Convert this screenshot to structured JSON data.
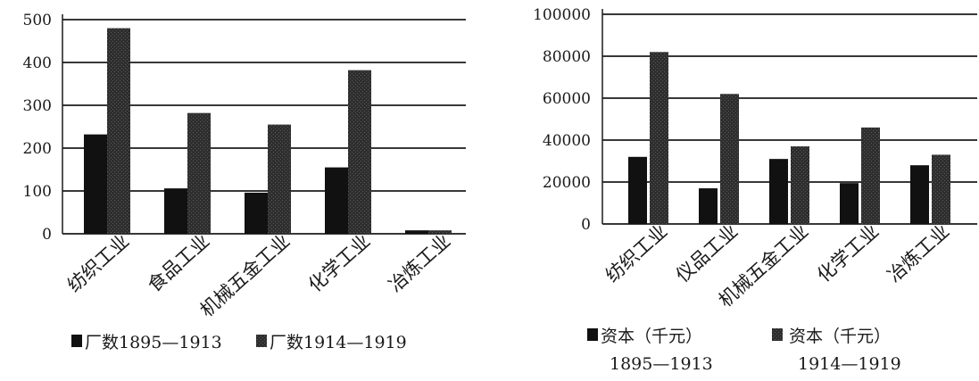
{
  "chart_data": [
    {
      "type": "bar",
      "categories": [
        "纺织工业",
        "食品工业",
        "机械五金工业",
        "化学工业",
        "冶炼工业"
      ],
      "series": [
        {
          "name": "厂数1895—1913",
          "values": [
            232,
            106,
            96,
            155,
            8
          ]
        },
        {
          "name": "厂数1914—1919",
          "values": [
            480,
            282,
            255,
            382,
            8
          ]
        }
      ],
      "yticks": [
        "0",
        "100",
        "200",
        "300",
        "400",
        "500"
      ],
      "ylim": [
        0,
        500
      ],
      "grid": true,
      "legend": "bottom",
      "colors": [
        "#111111",
        "#3a3a3a"
      ]
    },
    {
      "type": "bar",
      "categories": [
        "纺织工业",
        "仪品工业",
        "机械五金工业",
        "化学工业",
        "冶炼工业"
      ],
      "series": [
        {
          "name": "资本（千元） 1895—1913",
          "label_lines": [
            "资本（千元）",
            "1895—1913"
          ],
          "values": [
            32000,
            17000,
            31000,
            19500,
            28000
          ]
        },
        {
          "name": "资本（千元） 1914—1919",
          "label_lines": [
            "资本（千元）",
            "1914—1919"
          ],
          "values": [
            82000,
            62000,
            37000,
            46000,
            33000
          ]
        }
      ],
      "yticks": [
        "0",
        "20000",
        "40000",
        "60000",
        "80000",
        "100000"
      ],
      "ylim": [
        0,
        100000
      ],
      "grid": true,
      "legend": "bottom",
      "colors": [
        "#111111",
        "#3a3a3a"
      ]
    }
  ]
}
